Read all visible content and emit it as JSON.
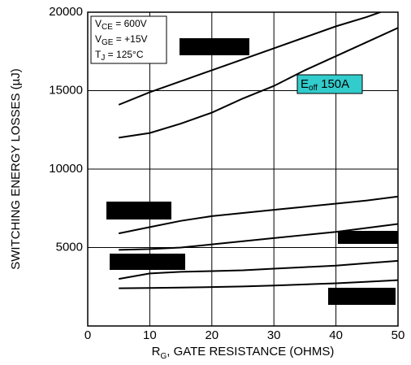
{
  "chart_data": {
    "type": "line",
    "ylabel": "SWITCHING ENERGY LOSSES (µJ)",
    "xlabel": [
      "R",
      "G",
      ", GATE  RESISTANCE (OHMS)"
    ],
    "x": [
      5,
      10,
      15,
      20,
      25,
      30,
      35,
      40,
      45,
      50
    ],
    "series": [
      {
        "color": "#000000",
        "values": [
          14100,
          14900,
          15600,
          16300,
          17000,
          17700,
          18400,
          19100,
          19700,
          20400
        ]
      },
      {
        "color": "#000000",
        "values": [
          12000,
          12300,
          12900,
          13600,
          14500,
          15300,
          16300,
          17200,
          18100,
          19000
        ]
      },
      {
        "color": "#000000",
        "values": [
          5900,
          6300,
          6700,
          7000,
          7200,
          7400,
          7600,
          7800,
          8000,
          8250
        ]
      },
      {
        "color": "#000000",
        "values": [
          4850,
          4900,
          5000,
          5200,
          5400,
          5600,
          5800,
          6000,
          6250,
          6500
        ]
      },
      {
        "color": "#000000",
        "values": [
          3000,
          3350,
          3450,
          3500,
          3550,
          3650,
          3750,
          3850,
          4000,
          4150
        ]
      },
      {
        "color": "#000000",
        "values": [
          2400,
          2420,
          2450,
          2480,
          2520,
          2580,
          2650,
          2720,
          2820,
          2920
        ]
      }
    ],
    "xlim": [
      0,
      50
    ],
    "xticks": [
      0,
      10,
      20,
      30,
      40,
      50
    ],
    "ylim": [
      0,
      20000
    ],
    "yticks": [
      5000,
      10000,
      15000,
      20000
    ],
    "grid": true,
    "conditions": [
      [
        "V",
        "CE",
        " =  600V"
      ],
      [
        "V",
        "GE",
        " = +15V"
      ],
      [
        "T",
        "J",
        " = 125°C"
      ]
    ],
    "curve_label": [
      "E",
      "off",
      " 150A"
    ]
  }
}
